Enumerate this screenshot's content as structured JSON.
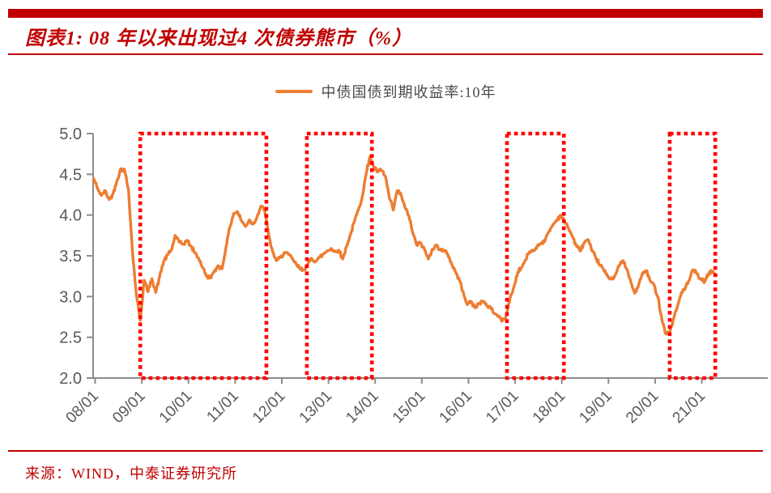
{
  "header": {
    "title": "图表1: 08 年以来出现过4 次债券熊市（%）"
  },
  "legend": {
    "label": "中债国债到期收益率:10年"
  },
  "footer": {
    "source": "来源：WIND，中泰证券研究所"
  },
  "colors": {
    "accent_red": "#C00000",
    "box_red": "#FF0000",
    "line_orange": "#ED7D31",
    "axis_gray": "#8C8C8C",
    "label_gray": "#595959"
  },
  "chart_data": {
    "type": "line",
    "title": "08 年以来出现过4 次债券熊市（%）",
    "ylabel": "",
    "xlabel": "",
    "ylim": [
      2.0,
      5.0
    ],
    "grid": false,
    "legend_position": "top-center",
    "y_ticks": [
      "5.0",
      "4.5",
      "4.0",
      "3.5",
      "3.0",
      "2.5",
      "2.0"
    ],
    "x_ticks": [
      "08/01",
      "09/01",
      "10/01",
      "11/01",
      "12/01",
      "13/01",
      "14/01",
      "15/01",
      "16/01",
      "17/01",
      "18/01",
      "19/01",
      "20/01",
      "21/01"
    ],
    "series": [
      {
        "name": "中债国债到期收益率:10年",
        "frequency": "monthly",
        "start": "2008-01",
        "end": "2021-05",
        "values": [
          4.45,
          4.33,
          4.24,
          4.3,
          4.19,
          4.26,
          4.42,
          4.57,
          4.55,
          4.3,
          3.55,
          3.02,
          2.71,
          3.2,
          3.06,
          3.22,
          3.05,
          3.25,
          3.43,
          3.51,
          3.57,
          3.75,
          3.67,
          3.64,
          3.69,
          3.62,
          3.54,
          3.47,
          3.36,
          3.25,
          3.23,
          3.3,
          3.38,
          3.34,
          3.6,
          3.85,
          4.02,
          4.04,
          3.93,
          3.86,
          3.94,
          3.89,
          3.98,
          4.11,
          4.05,
          3.75,
          3.55,
          3.44,
          3.48,
          3.54,
          3.52,
          3.47,
          3.4,
          3.34,
          3.33,
          3.39,
          3.47,
          3.43,
          3.48,
          3.52,
          3.56,
          3.59,
          3.55,
          3.57,
          3.46,
          3.62,
          3.76,
          3.92,
          4.06,
          4.22,
          4.5,
          4.72,
          4.58,
          4.53,
          4.55,
          4.47,
          4.21,
          4.06,
          4.3,
          4.25,
          4.09,
          3.99,
          3.78,
          3.63,
          3.66,
          3.58,
          3.46,
          3.58,
          3.63,
          3.58,
          3.56,
          3.52,
          3.4,
          3.3,
          3.2,
          3.05,
          2.9,
          2.94,
          2.86,
          2.92,
          2.94,
          2.89,
          2.87,
          2.79,
          2.76,
          2.7,
          2.76,
          2.98,
          3.12,
          3.3,
          3.36,
          3.45,
          3.55,
          3.56,
          3.62,
          3.66,
          3.69,
          3.8,
          3.88,
          3.94,
          4.0,
          3.92,
          3.84,
          3.74,
          3.62,
          3.56,
          3.66,
          3.7,
          3.56,
          3.48,
          3.39,
          3.33,
          3.25,
          3.22,
          3.26,
          3.38,
          3.44,
          3.33,
          3.18,
          3.04,
          3.14,
          3.28,
          3.32,
          3.19,
          3.14,
          2.99,
          2.72,
          2.54,
          2.56,
          2.73,
          2.88,
          3.05,
          3.1,
          3.2,
          3.33,
          3.28,
          3.21,
          3.18,
          3.28,
          3.31,
          3.26
        ]
      }
    ],
    "bear_market_boxes": [
      {
        "from_month": 12.0,
        "to_month": 44.4
      },
      {
        "from_month": 54.8,
        "to_month": 71.5
      },
      {
        "from_month": 106.2,
        "to_month": 120.8
      },
      {
        "from_month": 148.0,
        "to_month": 159.7
      }
    ]
  }
}
